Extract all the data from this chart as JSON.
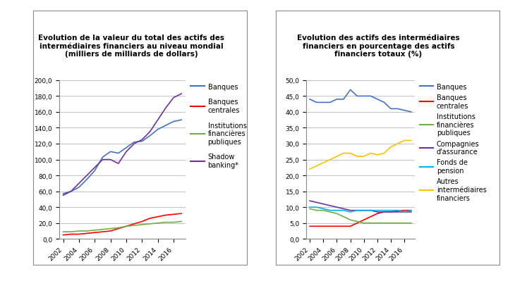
{
  "years": [
    2002,
    2003,
    2004,
    2005,
    2006,
    2007,
    2008,
    2009,
    2010,
    2011,
    2012,
    2013,
    2014,
    2015,
    2016,
    2017
  ],
  "chart1": {
    "title": "Evolution de la valeur du total des actifs des\nintermédiaires financiers au niveau mondial\n(milliers de milliards de dollars)",
    "ylim": [
      0,
      200
    ],
    "yticks": [
      0,
      20,
      40,
      60,
      80,
      100,
      120,
      140,
      160,
      180,
      200
    ],
    "series": [
      {
        "label": "Banques",
        "color": "#4472C4",
        "data": [
          57,
          60,
          65,
          75,
          86,
          103,
          110,
          108,
          115,
          122,
          123,
          130,
          138,
          143,
          148,
          150
        ]
      },
      {
        "label": "Banques\ncentrales",
        "color": "#FF0000",
        "data": [
          5,
          6,
          6,
          7,
          8,
          9,
          10,
          13,
          16,
          19,
          22,
          26,
          28,
          30,
          31,
          32
        ]
      },
      {
        "label": "Institutions\nfinancières\npubliques",
        "color": "#70AD47",
        "data": [
          9,
          9,
          10,
          10,
          11,
          12,
          13,
          14,
          16,
          17,
          18,
          19,
          20,
          21,
          21,
          22
        ]
      },
      {
        "label": "Shadow\nbanking*",
        "color": "#7030A0",
        "data": [
          55,
          60,
          70,
          80,
          90,
          100,
          100,
          95,
          110,
          120,
          125,
          135,
          150,
          165,
          178,
          183
        ]
      }
    ]
  },
  "chart2": {
    "title": "Evolution des actifs des intermédiaires\nfinanciers en pourcentage des actifs\nfinanciers totaux (%)",
    "ylim": [
      0,
      50
    ],
    "yticks": [
      0,
      5,
      10,
      15,
      20,
      25,
      30,
      35,
      40,
      45,
      50
    ],
    "series": [
      {
        "label": "Banques",
        "color": "#4472C4",
        "data": [
          44,
          43,
          43,
          43,
          44,
          44,
          47,
          45,
          45,
          45,
          44,
          43,
          41,
          41,
          40.5,
          40
        ]
      },
      {
        "label": "Banques\ncentrales",
        "color": "#FF0000",
        "data": [
          4,
          4,
          4,
          4,
          4,
          4,
          4,
          5,
          6,
          7,
          8,
          8.5,
          8.5,
          8.8,
          9,
          9
        ]
      },
      {
        "label": "Institutions\nfinancières\npubliques",
        "color": "#70AD47",
        "data": [
          9.5,
          9,
          9,
          8.5,
          8,
          7,
          6,
          5.5,
          5,
          5,
          5,
          5,
          5,
          5,
          5,
          5
        ]
      },
      {
        "label": "Compagnies\nd'assurance",
        "color": "#7030A0",
        "data": [
          12,
          11.5,
          11,
          10.5,
          10,
          9.5,
          9,
          9,
          9,
          9,
          8.5,
          8.5,
          8.5,
          8.5,
          8.5,
          8.5
        ]
      },
      {
        "label": "Fonds de\npension",
        "color": "#00B0F0",
        "data": [
          10,
          10,
          9.5,
          9,
          9,
          9,
          8.5,
          9,
          9,
          9,
          9,
          9,
          9,
          9,
          8.5,
          9
        ]
      },
      {
        "label": "Autres\nintermédiaires\nfinanciers",
        "color": "#FFC000",
        "data": [
          22,
          23,
          24,
          25,
          26,
          27,
          27,
          26,
          26,
          27,
          26.5,
          27,
          29,
          30,
          31,
          31
        ]
      }
    ]
  },
  "background_color": "#FFFFFF",
  "grid_color": "#AAAAAA",
  "box_edge_color": "#888888",
  "title_fontsize": 7.5,
  "legend_fontsize": 7,
  "tick_fontsize": 6.5
}
